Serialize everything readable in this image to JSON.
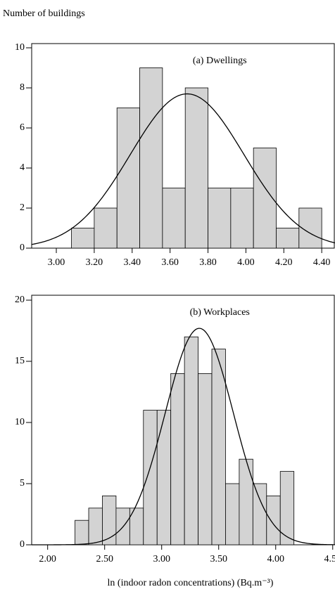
{
  "chart_data": [
    {
      "type": "histogram",
      "y_label": "Number of buildings",
      "annotation": "(a) Dwellings",
      "bins": [
        3.08,
        3.2,
        3.32,
        3.44,
        3.56,
        3.68,
        3.8,
        3.92,
        4.04,
        4.16,
        4.28,
        4.4
      ],
      "values": [
        1,
        2,
        7,
        9,
        3,
        8,
        3,
        3,
        5,
        1,
        2
      ],
      "color": "#d3d3d3",
      "curve": {
        "mean": 3.69,
        "sd": 0.3,
        "peak": 7.7
      },
      "xlim": [
        2.87,
        4.47
      ],
      "ylim": [
        0,
        10
      ],
      "xticks": [
        {
          "value": 3,
          "label": "3.00"
        },
        {
          "value": 3.2,
          "label": "3.20"
        },
        {
          "value": 3.4,
          "label": "3.40"
        },
        {
          "value": 3.6,
          "label": "3.60"
        },
        {
          "value": 3.8,
          "label": "3.80"
        },
        {
          "value": 4,
          "label": "4.00"
        },
        {
          "value": 4.2,
          "label": "4.20"
        },
        {
          "value": 4.4,
          "label": "4.40"
        }
      ],
      "yticks": [
        0,
        2,
        4,
        6,
        8,
        10
      ]
    },
    {
      "type": "histogram",
      "x_label": "ln (indoor radon concentrations) (Bq.m⁻³)",
      "annotation": "(b) Workplaces",
      "bins": [
        2.24,
        2.36,
        2.48,
        2.6,
        2.72,
        2.84,
        2.96,
        3.08,
        3.2,
        3.32,
        3.44,
        3.56,
        3.68,
        3.8,
        3.92,
        4.04,
        4.16
      ],
      "values": [
        2,
        3,
        4,
        3,
        3,
        11,
        11,
        14,
        17,
        14,
        16,
        5,
        7,
        5,
        4,
        6
      ],
      "color": "#d3d3d3",
      "curve": {
        "mean": 3.33,
        "sd": 0.3,
        "peak": 17.7
      },
      "xlim": [
        1.86,
        4.52
      ],
      "ylim": [
        0,
        20
      ],
      "xticks": [
        {
          "value": 2,
          "label": "2.00"
        },
        {
          "value": 2.5,
          "label": "2.50"
        },
        {
          "value": 3,
          "label": "3.00"
        },
        {
          "value": 3.5,
          "label": "3.50"
        },
        {
          "value": 4,
          "label": "4.00"
        },
        {
          "value": 4.5,
          "label": "4.50"
        }
      ],
      "yticks": [
        0,
        5,
        10,
        15,
        20
      ]
    }
  ]
}
